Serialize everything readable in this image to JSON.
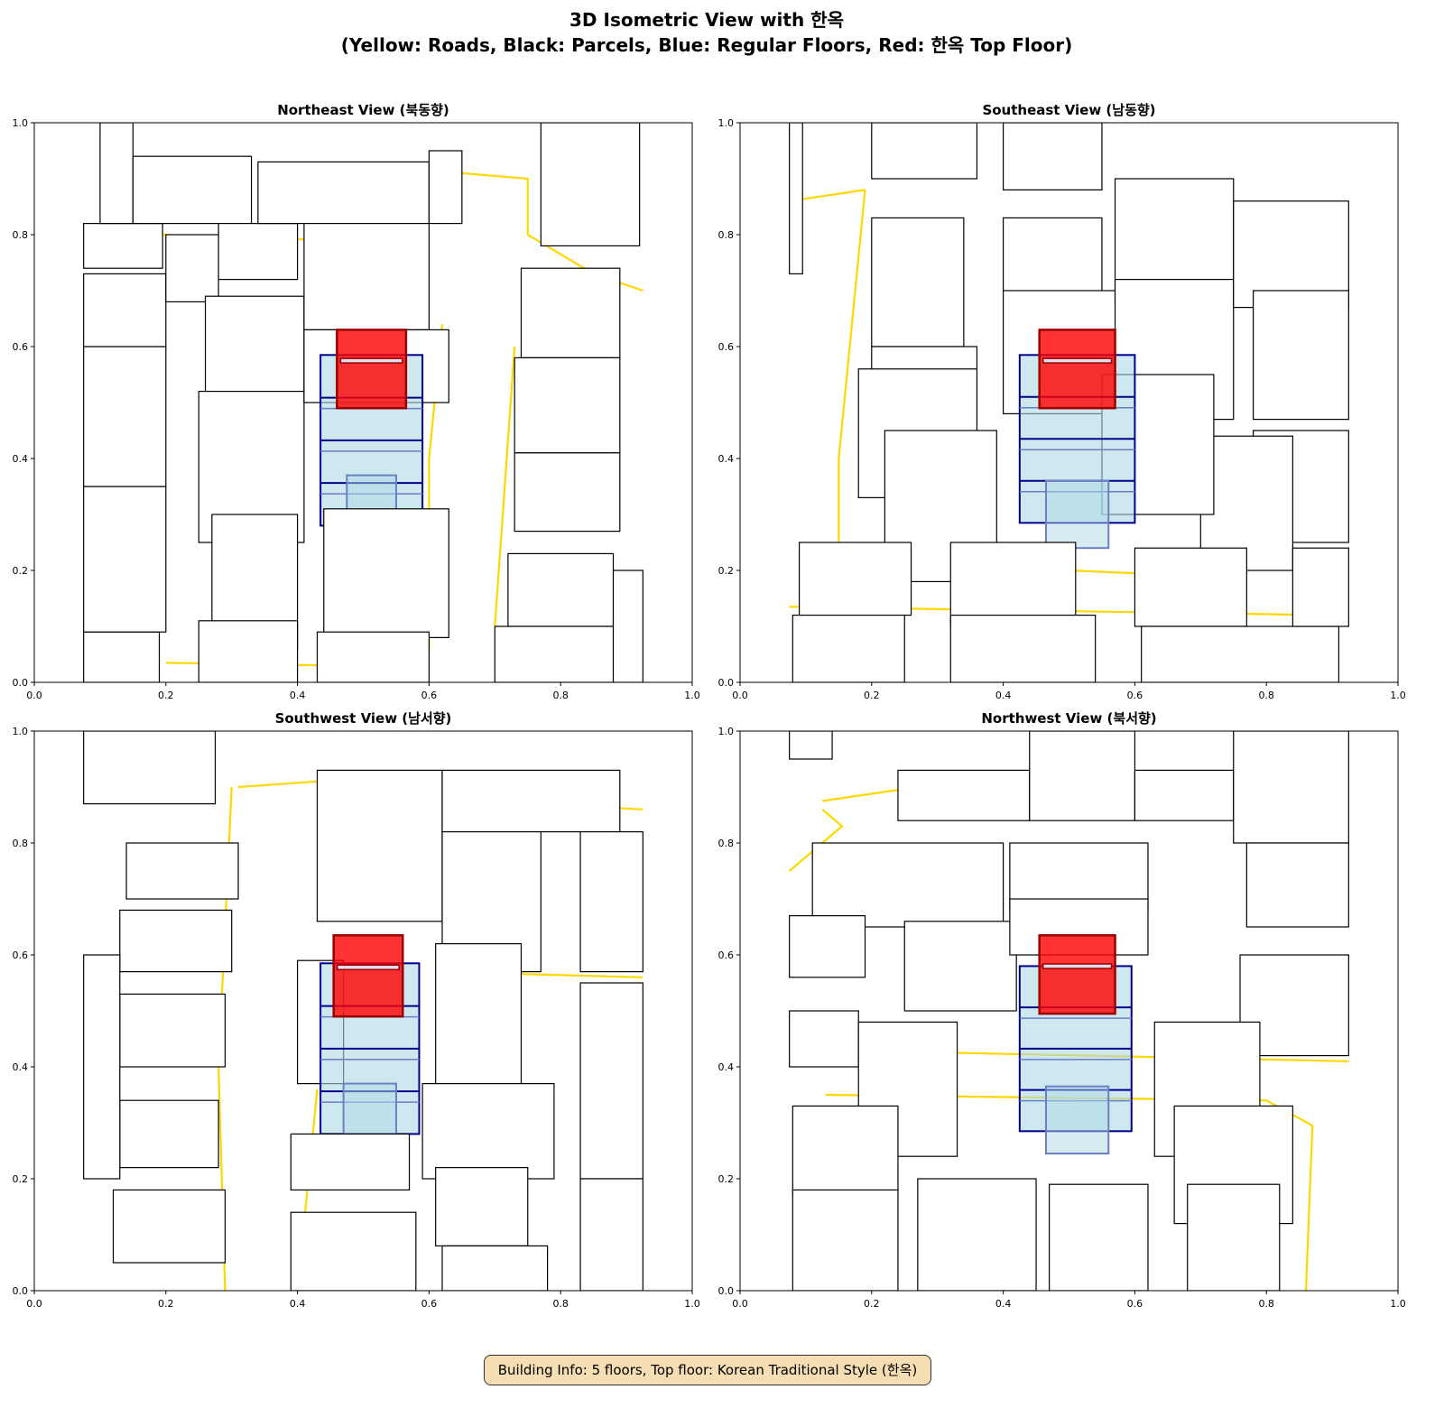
{
  "title_line1": "3D Isometric View with 한옥",
  "title_line2": "(Yellow: Roads, Black: Parcels, Blue: Regular Floors, Red: 한옥 Top Floor)",
  "info_box": "Building Info: 5 floors, Top floor: Korean Traditional Style (한옥)",
  "colors": {
    "road": "#ffd700",
    "road_edge": "#8b7500",
    "parcel": "#000000",
    "floor_fill": "#add8e6",
    "floor_edge": "#00008b",
    "top_floor": "#ff0000"
  },
  "chart_data": [
    {
      "type": "3d-isometric",
      "title": "Northeast View (북동향)",
      "xlim": [
        0,
        1
      ],
      "ylim": [
        0,
        1
      ],
      "xticks": [
        "0.0",
        "0.2",
        "0.4",
        "0.6",
        "0.8",
        "1.0"
      ],
      "yticks": [
        "0.0",
        "0.2",
        "0.4",
        "0.6",
        "0.8",
        "1.0"
      ],
      "parcels": [
        [
          0.075,
          0.74,
          0.195,
          0.82
        ],
        [
          0.075,
          0.0,
          0.19,
          0.09
        ],
        [
          0.075,
          0.09,
          0.2,
          0.35
        ],
        [
          0.075,
          0.35,
          0.2,
          0.6
        ],
        [
          0.075,
          0.6,
          0.2,
          0.73
        ],
        [
          0.1,
          0.82,
          0.15,
          1.0
        ],
        [
          0.15,
          0.82,
          0.33,
          0.94
        ],
        [
          0.2,
          0.68,
          0.28,
          0.8
        ],
        [
          0.28,
          0.72,
          0.4,
          0.82
        ],
        [
          0.26,
          0.52,
          0.41,
          0.69
        ],
        [
          0.25,
          0.25,
          0.41,
          0.52
        ],
        [
          0.27,
          0.06,
          0.4,
          0.3
        ],
        [
          0.25,
          0.0,
          0.4,
          0.11
        ],
        [
          0.34,
          0.82,
          0.6,
          0.93
        ],
        [
          0.6,
          0.82,
          0.65,
          0.95
        ],
        [
          0.77,
          0.78,
          0.92,
          1.0
        ],
        [
          0.74,
          0.58,
          0.89,
          0.74
        ],
        [
          0.73,
          0.41,
          0.89,
          0.58
        ],
        [
          0.73,
          0.27,
          0.89,
          0.41
        ],
        [
          0.72,
          0.1,
          0.88,
          0.23
        ],
        [
          0.7,
          0.0,
          0.88,
          0.1
        ],
        [
          0.88,
          0.0,
          0.925,
          0.2
        ],
        [
          0.41,
          0.63,
          0.6,
          0.82
        ],
        [
          0.41,
          0.5,
          0.63,
          0.63
        ]
      ],
      "foreground": [
        [
          0.44,
          0.08,
          0.63,
          0.31
        ],
        [
          0.43,
          0.0,
          0.6,
          0.09
        ]
      ],
      "roads": [
        [
          [
            0.1,
            0.87
          ],
          [
            0.15,
            0.88
          ]
        ],
        [
          [
            0.19,
            0.8
          ],
          [
            0.45,
            0.79
          ]
        ],
        [
          [
            0.65,
            0.91
          ],
          [
            0.75,
            0.9
          ],
          [
            0.75,
            0.8
          ],
          [
            0.85,
            0.73
          ],
          [
            0.925,
            0.7
          ]
        ],
        [
          [
            0.62,
            0.64
          ],
          [
            0.6,
            0.4
          ],
          [
            0.6,
            0.15
          ],
          [
            0.6,
            0.06
          ]
        ],
        [
          [
            0.2,
            0.035
          ],
          [
            0.45,
            0.03
          ]
        ],
        [
          [
            0.73,
            0.6
          ],
          [
            0.7,
            0.1
          ]
        ]
      ],
      "building": {
        "floors": 5,
        "blue": [
          0.435,
          0.28,
          0.59,
          0.585
        ],
        "lower": [
          0.475,
          0.2,
          0.55,
          0.37
        ],
        "red": [
          0.46,
          0.49,
          0.565,
          0.63
        ]
      }
    },
    {
      "type": "3d-isometric",
      "title": "Southeast View (남동향)",
      "xlim": [
        0,
        1
      ],
      "ylim": [
        0,
        1
      ],
      "xticks": [
        "0.0",
        "0.2",
        "0.4",
        "0.6",
        "0.8",
        "1.0"
      ],
      "yticks": [
        "0.0",
        "0.2",
        "0.4",
        "0.6",
        "0.8",
        "1.0"
      ],
      "parcels": [
        [
          0.075,
          0.73,
          0.095,
          1.0
        ],
        [
          0.2,
          0.9,
          0.36,
          1.0
        ],
        [
          0.2,
          0.6,
          0.34,
          0.83
        ],
        [
          0.2,
          0.39,
          0.36,
          0.6
        ],
        [
          0.18,
          0.33,
          0.36,
          0.56
        ],
        [
          0.22,
          0.18,
          0.39,
          0.45
        ],
        [
          0.4,
          0.88,
          0.55,
          1.0
        ],
        [
          0.4,
          0.6,
          0.55,
          0.83
        ],
        [
          0.4,
          0.48,
          0.58,
          0.7
        ],
        [
          0.57,
          0.68,
          0.75,
          0.9
        ],
        [
          0.57,
          0.47,
          0.75,
          0.72
        ],
        [
          0.75,
          0.67,
          0.925,
          0.86
        ],
        [
          0.78,
          0.47,
          0.925,
          0.7
        ],
        [
          0.78,
          0.25,
          0.925,
          0.45
        ],
        [
          0.7,
          0.2,
          0.84,
          0.44
        ],
        [
          0.55,
          0.3,
          0.72,
          0.55
        ]
      ],
      "foreground": [
        [
          0.09,
          0.12,
          0.26,
          0.25
        ],
        [
          0.08,
          0.0,
          0.25,
          0.12
        ],
        [
          0.32,
          0.1,
          0.51,
          0.25
        ],
        [
          0.32,
          0.0,
          0.54,
          0.12
        ],
        [
          0.6,
          0.1,
          0.77,
          0.24
        ],
        [
          0.61,
          0.0,
          0.91,
          0.1
        ],
        [
          0.84,
          0.1,
          0.925,
          0.24
        ]
      ],
      "roads": [
        [
          [
            0.075,
            0.86
          ],
          [
            0.19,
            0.88
          ]
        ],
        [
          [
            0.19,
            0.88
          ],
          [
            0.15,
            0.4
          ],
          [
            0.15,
            0.2
          ]
        ],
        [
          [
            0.075,
            0.135
          ],
          [
            0.9,
            0.12
          ]
        ],
        [
          [
            0.5,
            0.2
          ],
          [
            0.6,
            0.195
          ]
        ]
      ],
      "building": {
        "floors": 5,
        "blue": [
          0.425,
          0.285,
          0.6,
          0.585
        ],
        "lower": [
          0.465,
          0.24,
          0.56,
          0.36
        ],
        "red": [
          0.455,
          0.49,
          0.57,
          0.63
        ]
      }
    },
    {
      "type": "3d-isometric",
      "title": "Southwest View (남서향)",
      "xlim": [
        0,
        1
      ],
      "ylim": [
        0,
        1
      ],
      "xticks": [
        "0.0",
        "0.2",
        "0.4",
        "0.6",
        "0.8",
        "1.0"
      ],
      "yticks": [
        "0.0",
        "0.2",
        "0.4",
        "0.6",
        "0.8",
        "1.0"
      ],
      "parcels": [
        [
          0.075,
          0.87,
          0.275,
          1.0
        ],
        [
          0.14,
          0.7,
          0.31,
          0.8
        ],
        [
          0.13,
          0.57,
          0.3,
          0.68
        ],
        [
          0.13,
          0.4,
          0.29,
          0.53
        ],
        [
          0.13,
          0.22,
          0.28,
          0.34
        ],
        [
          0.075,
          0.2,
          0.13,
          0.6
        ],
        [
          0.43,
          0.66,
          0.62,
          0.93
        ],
        [
          0.62,
          0.82,
          0.89,
          0.93
        ],
        [
          0.62,
          0.57,
          0.77,
          0.82
        ],
        [
          0.83,
          0.57,
          0.925,
          0.82
        ],
        [
          0.83,
          0.2,
          0.925,
          0.55
        ],
        [
          0.4,
          0.37,
          0.47,
          0.59
        ],
        [
          0.61,
          0.37,
          0.74,
          0.62
        ],
        [
          0.59,
          0.2,
          0.79,
          0.37
        ]
      ],
      "foreground": [
        [
          0.12,
          0.05,
          0.29,
          0.18
        ],
        [
          0.39,
          0.18,
          0.57,
          0.28
        ],
        [
          0.39,
          0.0,
          0.58,
          0.14
        ],
        [
          0.61,
          0.08,
          0.75,
          0.22
        ],
        [
          0.62,
          0.0,
          0.78,
          0.08
        ],
        [
          0.83,
          0.0,
          0.925,
          0.2
        ]
      ],
      "roads": [
        [
          [
            0.31,
            0.9
          ],
          [
            0.43,
            0.91
          ]
        ],
        [
          [
            0.3,
            0.9
          ],
          [
            0.28,
            0.4
          ],
          [
            0.29,
            0.0
          ]
        ],
        [
          [
            0.62,
            0.88
          ],
          [
            0.925,
            0.86
          ]
        ],
        [
          [
            0.61,
            0.57
          ],
          [
            0.925,
            0.56
          ]
        ],
        [
          [
            0.4,
            0.0
          ],
          [
            0.43,
            0.36
          ]
        ]
      ],
      "building": {
        "floors": 5,
        "blue": [
          0.435,
          0.28,
          0.585,
          0.585
        ],
        "lower": [
          0.47,
          0.2,
          0.55,
          0.37
        ],
        "red": [
          0.455,
          0.49,
          0.56,
          0.635
        ]
      }
    },
    {
      "type": "3d-isometric",
      "title": "Northwest View (북서향)",
      "xlim": [
        0,
        1
      ],
      "ylim": [
        0,
        1
      ],
      "xticks": [
        "0.0",
        "0.2",
        "0.4",
        "0.6",
        "0.8",
        "1.0"
      ],
      "yticks": [
        "0.0",
        "0.2",
        "0.4",
        "0.6",
        "0.8",
        "1.0"
      ],
      "parcels": [
        [
          0.075,
          0.95,
          0.14,
          1.0
        ],
        [
          0.24,
          0.84,
          0.44,
          0.93
        ],
        [
          0.44,
          0.84,
          0.6,
          1.0
        ],
        [
          0.6,
          0.84,
          0.75,
          0.93
        ],
        [
          0.75,
          0.8,
          0.925,
          1.0
        ],
        [
          0.11,
          0.65,
          0.4,
          0.8
        ],
        [
          0.075,
          0.56,
          0.19,
          0.67
        ],
        [
          0.25,
          0.5,
          0.42,
          0.66
        ],
        [
          0.41,
          0.68,
          0.62,
          0.8
        ],
        [
          0.41,
          0.6,
          0.62,
          0.7
        ],
        [
          0.77,
          0.65,
          0.925,
          0.8
        ],
        [
          0.76,
          0.42,
          0.925,
          0.6
        ],
        [
          0.075,
          0.4,
          0.18,
          0.5
        ],
        [
          0.18,
          0.24,
          0.33,
          0.48
        ],
        [
          0.63,
          0.24,
          0.79,
          0.48
        ]
      ],
      "foreground": [
        [
          0.08,
          0.17,
          0.24,
          0.33
        ],
        [
          0.08,
          0.0,
          0.24,
          0.18
        ],
        [
          0.27,
          0.0,
          0.45,
          0.2
        ],
        [
          0.47,
          0.0,
          0.62,
          0.19
        ],
        [
          0.66,
          0.12,
          0.84,
          0.33
        ],
        [
          0.68,
          0.0,
          0.82,
          0.19
        ]
      ],
      "roads": [
        [
          [
            0.125,
            0.875
          ],
          [
            0.24,
            0.895
          ]
        ],
        [
          [
            0.075,
            0.75
          ],
          [
            0.155,
            0.83
          ],
          [
            0.125,
            0.86
          ]
        ],
        [
          [
            0.13,
            0.43
          ],
          [
            0.925,
            0.41
          ]
        ],
        [
          [
            0.13,
            0.35
          ],
          [
            0.8,
            0.34
          ],
          [
            0.87,
            0.295
          ],
          [
            0.86,
            0.0
          ]
        ]
      ],
      "building": {
        "floors": 5,
        "blue": [
          0.425,
          0.285,
          0.595,
          0.58
        ],
        "lower": [
          0.465,
          0.245,
          0.56,
          0.365
        ],
        "red": [
          0.455,
          0.495,
          0.57,
          0.635
        ]
      }
    }
  ]
}
